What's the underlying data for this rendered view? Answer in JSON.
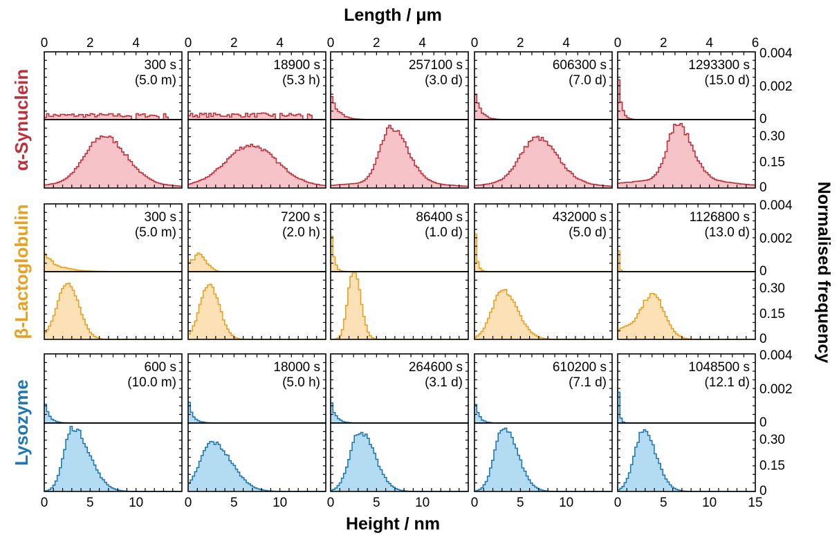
{
  "figure": {
    "top_axis_title": "Length / μm",
    "bottom_axis_title": "Height / nm",
    "right_axis_title": "Normalised frequency",
    "top_ticks": [
      "0",
      "2",
      "4",
      "0",
      "2",
      "4",
      "0",
      "2",
      "4",
      "0",
      "2",
      "4",
      "0",
      "2",
      "4",
      "6"
    ],
    "bottom_ticks": [
      "0",
      "5",
      "10",
      "0",
      "5",
      "10",
      "0",
      "5",
      "10",
      "0",
      "5",
      "10",
      "0",
      "5",
      "10",
      "15"
    ],
    "length_yticks": [
      "0.004",
      "0.002",
      "0"
    ],
    "height_yticks": [
      "0.30",
      "0.15",
      "0"
    ]
  },
  "chart_data": {
    "type": "histogram-grid",
    "length_axis": {
      "label": "Length / μm",
      "range": [
        0,
        6
      ],
      "ticks": [
        0,
        2,
        4,
        6
      ]
    },
    "height_axis": {
      "label": "Height / nm",
      "range": [
        0,
        15
      ],
      "ticks": [
        0,
        5,
        10,
        15
      ]
    },
    "length_yaxis": {
      "range": [
        0,
        0.004
      ],
      "ticks": [
        0,
        0.002,
        0.004
      ]
    },
    "height_yaxis": {
      "range": [
        0,
        0.3
      ],
      "ticks": [
        0,
        0.15,
        0.3
      ]
    },
    "proteins": [
      {
        "name": "α-Synuclein",
        "color_stroke": "#c0303a",
        "color_fill": "#f6c3c8",
        "panels": [
          {
            "time": "300 s",
            "dur": "(5.0 m)",
            "length": {
              "shape": "flat",
              "level": 0.0003
            },
            "height": {
              "shape": "asym",
              "mu": 6.5,
              "sigl": 2.0,
              "sigr": 2.4,
              "peak": 0.255,
              "tail": 0.03
            }
          },
          {
            "time": "18900 s",
            "dur": "(5.3 h)",
            "length": {
              "shape": "flat",
              "level": 0.00032
            },
            "height": {
              "shape": "asym",
              "mu": 6.8,
              "sigl": 2.6,
              "sigr": 2.8,
              "peak": 0.205,
              "tail": 0.03
            }
          },
          {
            "time": "257100 s",
            "dur": "(3.0 d)",
            "length": {
              "shape": "decay",
              "peak": 0.0019,
              "scale": 0.3,
              "cut": 2.4
            },
            "height": {
              "shape": "asym",
              "mu": 6.6,
              "sigl": 1.2,
              "sigr": 1.8,
              "peak": 0.3,
              "tail": 0.03
            }
          },
          {
            "time": "606300 s",
            "dur": "(7.0 d)",
            "length": {
              "shape": "decay",
              "peak": 0.0025,
              "scale": 0.22,
              "cut": 1.5
            },
            "height": {
              "shape": "asym",
              "mu": 6.8,
              "sigl": 1.8,
              "sigr": 2.2,
              "peak": 0.245,
              "tail": 0.03
            }
          },
          {
            "time": "1293300 s",
            "dur": "(15.0 d)",
            "length": {
              "shape": "decay",
              "peak": 0.0038,
              "scale": 0.13,
              "cut": 0.9
            },
            "height": {
              "shape": "asym",
              "mu": 6.5,
              "sigl": 1.1,
              "sigr": 1.6,
              "peak": 0.3,
              "tail": 0.05
            }
          }
        ]
      },
      {
        "name": "β-Lactoglobulin",
        "color_stroke": "#e8a020",
        "color_fill": "#fce0b6",
        "panels": [
          {
            "time": "300 s",
            "dur": "(5.0 m)",
            "length": {
              "shape": "decay",
              "peak": 0.0012,
              "scale": 0.6,
              "cut": 3.5
            },
            "height": {
              "shape": "asym",
              "mu": 2.6,
              "sigl": 1.2,
              "sigr": 1.2,
              "peak": 0.315,
              "tail": 0.0
            }
          },
          {
            "time": "7200 s",
            "dur": "(2.0 h)",
            "length": {
              "shape": "bump",
              "mu": 0.45,
              "sig": 0.35,
              "peak": 0.0011,
              "cut": 1.3
            },
            "height": {
              "shape": "asym",
              "mu": 2.3,
              "sigl": 1.0,
              "sigr": 1.1,
              "peak": 0.31,
              "tail": 0.0
            }
          },
          {
            "time": "86400 s",
            "dur": "(1.0 d)",
            "length": {
              "shape": "decay",
              "peak": 0.0033,
              "scale": 0.12,
              "cut": 0.9
            },
            "height": {
              "shape": "asym",
              "mu": 2.5,
              "sigl": 0.6,
              "sigr": 0.75,
              "peak": 0.4,
              "tail": 0.0
            }
          },
          {
            "time": "432000 s",
            "dur": "(5.0 d)",
            "length": {
              "shape": "decay",
              "peak": 0.004,
              "scale": 0.09,
              "cut": 0.7
            },
            "height": {
              "shape": "asym",
              "mu": 3.1,
              "sigl": 1.2,
              "sigr": 1.6,
              "peak": 0.27,
              "tail": 0.0
            }
          },
          {
            "time": "1126800 s",
            "dur": "(13.0 d)",
            "length": {
              "shape": "decay",
              "peak": 0.0044,
              "scale": 0.04,
              "cut": 0.3
            },
            "height": {
              "shape": "two",
              "mu": 3.8,
              "sigl": 1.4,
              "sigr": 1.3,
              "peak": 0.25,
              "mu2": 0.5,
              "sig2": 0.9,
              "peak2": 0.05
            }
          }
        ]
      },
      {
        "name": "Lysozyme",
        "color_stroke": "#1f78b4",
        "color_fill": "#b3dcf3",
        "panels": [
          {
            "time": "600 s",
            "dur": "(10.0 m)",
            "length": {
              "shape": "decay",
              "peak": 0.0016,
              "scale": 0.2,
              "cut": 3.5
            },
            "height": {
              "shape": "asym",
              "mu": 3.1,
              "sigl": 0.95,
              "sigr": 1.8,
              "peak": 0.35,
              "tail": 0.0
            }
          },
          {
            "time": "18000 s",
            "dur": "(5.0 h)",
            "length": {
              "shape": "decay",
              "peak": 0.0016,
              "scale": 0.2,
              "cut": 3.5
            },
            "height": {
              "shape": "asym",
              "mu": 2.6,
              "sigl": 1.3,
              "sigr": 2.1,
              "peak": 0.27,
              "tail": 0.0
            }
          },
          {
            "time": "264600 s",
            "dur": "(3.1 d)",
            "length": {
              "shape": "decay",
              "peak": 0.0017,
              "scale": 0.2,
              "cut": 3.0
            },
            "height": {
              "shape": "asym",
              "mu": 3.2,
              "sigl": 1.1,
              "sigr": 1.6,
              "peak": 0.33,
              "tail": 0.0
            }
          },
          {
            "time": "610200 s",
            "dur": "(7.1 d)",
            "length": {
              "shape": "decay",
              "peak": 0.0017,
              "scale": 0.17,
              "cut": 2.5
            },
            "height": {
              "shape": "asym",
              "mu": 3.2,
              "sigl": 1.0,
              "sigr": 1.5,
              "peak": 0.35,
              "tail": 0.0
            }
          },
          {
            "time": "1048500 s",
            "dur": "(12.1 d)",
            "length": {
              "shape": "decay",
              "peak": 0.0043,
              "scale": 0.06,
              "cut": 0.8
            },
            "height": {
              "shape": "asym",
              "mu": 2.8,
              "sigl": 1.0,
              "sigr": 1.4,
              "peak": 0.33,
              "tail": 0.0
            }
          }
        ]
      }
    ]
  }
}
